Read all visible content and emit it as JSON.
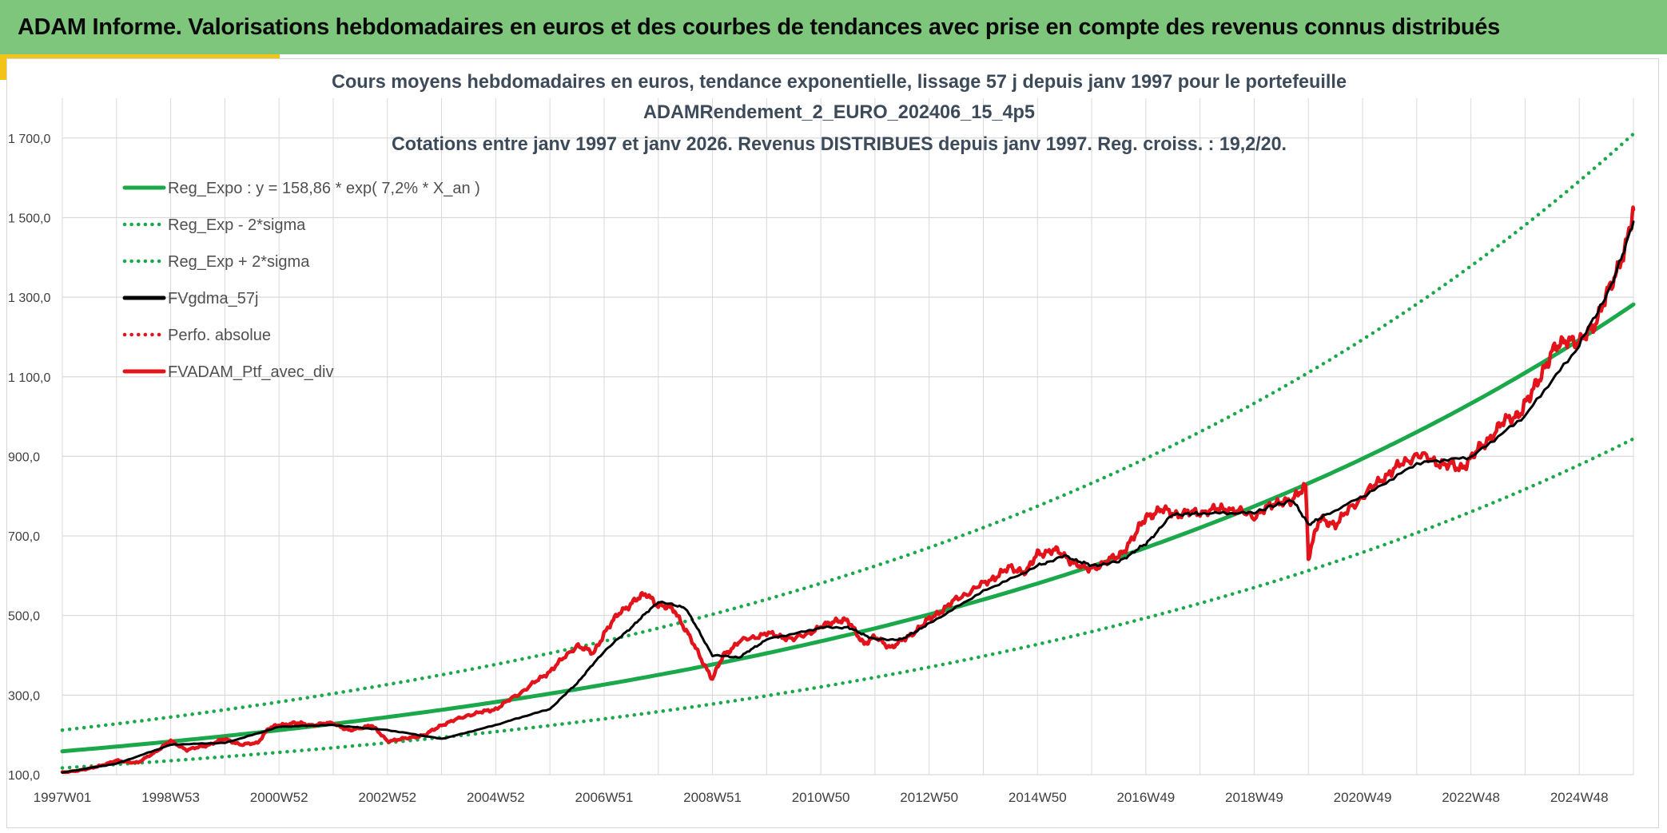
{
  "banner": {
    "title": "ADAM Informe. Valorisations hebdomadaires en euros et des courbes de tendances avec prise en compte des revenus connus distribués"
  },
  "colors": {
    "banner_bg": "#7dc67c",
    "accent": "#f2c318",
    "trend_green": "#1aa84a",
    "gdma_black": "#000000",
    "portfolio_red": "#e3131b",
    "title_text": "#3c4a5a",
    "axis_text": "#404040",
    "grid": "#d9d9d9"
  },
  "chart_data": {
    "type": "line",
    "title_lines": [
      "Cours moyens hebdomadaires en euros, tendance exponentielle, lissage 57 j depuis janv 1997 pour le portefeuille",
      "ADAMRendement_2_EURO_202406_15_4p5",
      "Cotations entre janv 1997 et janv 2026. Revenus DISTRIBUES depuis janv 1997. Reg. croiss. : 19,2/20."
    ],
    "x_range_years": [
      0,
      29
    ],
    "ylim": [
      100,
      1800
    ],
    "y_ticks": [
      100,
      300,
      500,
      700,
      900,
      1100,
      1300,
      1500,
      1700
    ],
    "y_tick_labels": [
      "100,0",
      "300,0",
      "500,0",
      "700,0",
      "900,0",
      "1 100,0",
      "1 300,0",
      "1 500,0",
      "1 700,0"
    ],
    "x_tick_labels": [
      "1997W01",
      "1998W53",
      "2000W52",
      "2002W52",
      "2004W52",
      "2006W51",
      "2008W51",
      "2010W50",
      "2012W50",
      "2014W50",
      "2016W49",
      "2018W49",
      "2020W49",
      "2022W48",
      "2024W48"
    ],
    "x_tick_years": [
      0,
      2,
      4,
      6,
      8,
      10,
      12,
      14,
      16,
      18,
      20,
      22,
      24,
      26,
      28
    ],
    "grid_minor_step_years": 1,
    "legend": [
      {
        "label": "Reg_Expo : y = 158,86 * exp( 7,2% *  X_an )",
        "style": "solid",
        "color": "#1aa84a"
      },
      {
        "label": "Reg_Exp - 2*sigma",
        "style": "dotted",
        "color": "#1aa84a"
      },
      {
        "label": "Reg_Exp + 2*sigma",
        "style": "dotted",
        "color": "#1aa84a"
      },
      {
        "label": "FVgdma_57j",
        "style": "solid",
        "color": "#000000"
      },
      {
        "label": "Perfo. absolue",
        "style": "dotted",
        "color": "#e3131b"
      },
      {
        "label": "FVADAM_Ptf_avec_div",
        "style": "solid",
        "color": "#e3131b"
      }
    ],
    "series": [
      {
        "name": "Reg_Expo",
        "function": "exponential",
        "a": 158.86,
        "rate": 0.072,
        "style": "solid",
        "color": "#1aa84a"
      },
      {
        "name": "Reg_Exp - 2*sigma",
        "function": "exponential",
        "a": 117,
        "rate": 0.072,
        "style": "dotted",
        "color": "#1aa84a"
      },
      {
        "name": "Reg_Exp + 2*sigma",
        "function": "exponential",
        "a": 212,
        "rate": 0.072,
        "style": "dotted",
        "color": "#1aa84a"
      },
      {
        "name": "FVADAM_Ptf_avec_div",
        "style": "solid",
        "color": "#e3131b",
        "x": [
          0,
          0.5,
          1,
          1.4,
          1.8,
          2.0,
          2.3,
          2.7,
          3.0,
          3.3,
          3.6,
          3.8,
          4.0,
          4.3,
          4.6,
          5.0,
          5.3,
          5.7,
          6.0,
          6.3,
          6.7,
          7.0,
          7.5,
          8.0,
          8.5,
          9.0,
          9.5,
          9.8,
          10.0,
          10.3,
          10.6,
          10.8,
          11.0,
          11.3,
          11.6,
          11.9,
          12.0,
          12.2,
          12.5,
          13.0,
          13.5,
          14.0,
          14.3,
          14.5,
          14.8,
          15.0,
          15.3,
          15.6,
          16.0,
          16.5,
          17.0,
          17.5,
          17.8,
          18.0,
          18.3,
          18.6,
          18.9,
          19.2,
          19.5,
          19.8,
          20.0,
          20.3,
          20.6,
          21.0,
          21.5,
          22.0,
          22.5,
          22.7,
          22.95,
          23.0,
          23.2,
          23.5,
          24.0,
          24.5,
          25.0,
          25.5,
          25.8,
          26.0,
          26.3,
          26.6,
          26.9,
          27.1,
          27.3,
          27.5,
          27.8,
          28.0,
          28.3,
          28.6,
          28.9,
          29.0
        ],
        "values": [
          105,
          115,
          135,
          130,
          165,
          185,
          162,
          175,
          190,
          175,
          180,
          215,
          225,
          230,
          225,
          230,
          210,
          225,
          185,
          190,
          200,
          225,
          250,
          265,
          310,
          360,
          425,
          405,
          455,
          510,
          540,
          555,
          525,
          515,
          440,
          365,
          340,
          400,
          435,
          455,
          440,
          470,
          490,
          485,
          430,
          445,
          420,
          445,
          490,
          540,
          580,
          620,
          610,
          655,
          665,
          640,
          615,
          630,
          650,
          700,
          750,
          765,
          755,
          760,
          770,
          750,
          790,
          785,
          830,
          650,
          740,
          730,
          800,
          860,
          905,
          880,
          870,
          895,
          940,
          985,
          1010,
          1050,
          1110,
          1160,
          1200,
          1180,
          1240,
          1330,
          1450,
          1520
        ]
      },
      {
        "name": "FVgdma_57j",
        "style": "solid",
        "color": "#000000",
        "x": [
          0,
          1,
          2,
          3,
          4,
          5,
          6,
          7,
          8,
          9,
          9.5,
          10,
          10.5,
          11,
          11.5,
          12,
          12.5,
          13,
          14,
          14.5,
          15,
          15.5,
          16,
          17,
          18,
          18.5,
          19,
          19.5,
          20,
          20.5,
          21,
          22,
          22.7,
          23,
          23.3,
          24,
          25,
          26,
          27,
          28,
          28.6,
          29
        ],
        "values": [
          105,
          128,
          175,
          180,
          220,
          225,
          212,
          190,
          225,
          265,
          330,
          410,
          470,
          535,
          520,
          400,
          395,
          440,
          470,
          470,
          440,
          440,
          480,
          560,
          625,
          650,
          625,
          635,
          680,
          755,
          755,
          760,
          790,
          730,
          750,
          800,
          880,
          900,
          1000,
          1180,
          1330,
          1490
        ]
      }
    ]
  }
}
